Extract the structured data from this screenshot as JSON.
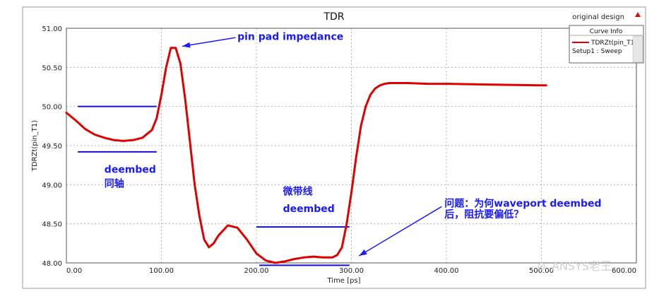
{
  "header": {
    "design_label": "original design"
  },
  "legend": {
    "title": "Curve Info",
    "series_label": "TDRZt(pin_T1)",
    "setup_label": "Setup1 : Sweep"
  },
  "watermark": {
    "text": "ANSYS老王"
  },
  "annotations": [
    {
      "text": "pin pad impedance",
      "x": 180,
      "y": 50.85
    },
    {
      "text": "deembed",
      "x": 40,
      "y": 49.15
    },
    {
      "text": "同轴",
      "x": 40,
      "y": 48.97
    },
    {
      "text": "微带线",
      "x": 228,
      "y": 48.87
    },
    {
      "text": "deembed",
      "x": 228,
      "y": 48.65
    },
    {
      "text": "问题：为何waveport deembed",
      "x": 398,
      "y": 48.72
    },
    {
      "text": "后，阻抗要偏低？",
      "x": 398,
      "y": 48.58
    }
  ],
  "ref_lines": [
    {
      "x1": 12,
      "x2": 95,
      "y": 50.0
    },
    {
      "x1": 12,
      "x2": 95,
      "y": 49.42
    },
    {
      "x1": 200,
      "x2": 298,
      "y": 48.46
    },
    {
      "x1": 203,
      "x2": 298,
      "y": 47.97
    }
  ],
  "arrows": [
    {
      "from": [
        178,
        50.88
      ],
      "to": [
        122,
        50.77
      ]
    },
    {
      "from": [
        395,
        48.72
      ],
      "to": [
        308,
        48.09
      ]
    }
  ],
  "chart_data": {
    "type": "line",
    "title": "TDR",
    "xlabel": "Time [ps]",
    "ylabel": "TDRZt(pin_T1)",
    "xlim": [
      0,
      600
    ],
    "ylim": [
      48.0,
      51.0
    ],
    "x_ticks": [
      "0.00",
      "100.00",
      "200.00",
      "300.00",
      "400.00",
      "500.00",
      "600.00"
    ],
    "y_ticks": [
      "48.00",
      "48.50",
      "49.00",
      "49.50",
      "50.00",
      "50.50",
      "51.00"
    ],
    "grid": true,
    "legend_position": "top-right",
    "series": [
      {
        "name": "TDRZt(pin_T1)",
        "color": "#e00000",
        "x": [
          0,
          10,
          20,
          30,
          40,
          50,
          60,
          70,
          80,
          90,
          95,
          100,
          105,
          110,
          115,
          120,
          125,
          130,
          135,
          140,
          145,
          150,
          155,
          160,
          170,
          180,
          190,
          200,
          210,
          220,
          230,
          240,
          250,
          260,
          270,
          280,
          285,
          290,
          295,
          300,
          305,
          310,
          315,
          320,
          325,
          330,
          335,
          340,
          350,
          360,
          380,
          400,
          450,
          500,
          505
        ],
        "y": [
          49.92,
          49.82,
          49.71,
          49.64,
          49.6,
          49.57,
          49.56,
          49.57,
          49.6,
          49.7,
          49.85,
          50.15,
          50.5,
          50.75,
          50.75,
          50.55,
          50.1,
          49.55,
          49.0,
          48.6,
          48.3,
          48.2,
          48.25,
          48.35,
          48.48,
          48.45,
          48.3,
          48.12,
          48.03,
          48.0,
          48.02,
          48.05,
          48.07,
          48.08,
          48.07,
          48.07,
          48.1,
          48.2,
          48.5,
          48.9,
          49.35,
          49.75,
          50.0,
          50.15,
          50.23,
          50.27,
          50.29,
          50.3,
          50.3,
          50.3,
          50.29,
          50.29,
          50.28,
          50.27,
          50.27
        ]
      }
    ]
  }
}
